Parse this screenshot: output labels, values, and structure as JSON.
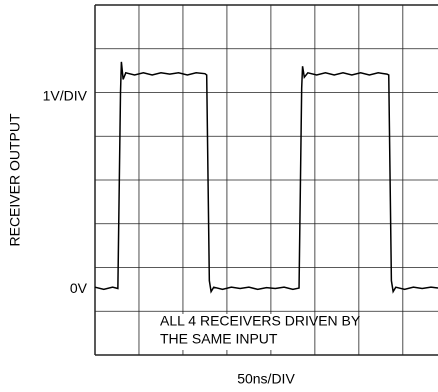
{
  "chart_data": {
    "type": "line",
    "y_label": "RECEIVER OUTPUT",
    "x_label": "50ns/DIV",
    "annotation": [
      "ALL 4 RECEIVERS DRIVEN BY",
      "THE SAME INPUT"
    ],
    "xlim": [
      0,
      390
    ],
    "ylim": [
      -1.5,
      6.5
    ],
    "xgrid": [
      0,
      50,
      100,
      150,
      200,
      250,
      300,
      350
    ],
    "ygrid": [
      -1.5,
      -0.5,
      0.5,
      1.5,
      2.5,
      3.5,
      4.5,
      5.5,
      6.5
    ],
    "yticks": [
      {
        "value": 0,
        "label": "0V"
      },
      {
        "value": 4.4,
        "label": "1V/DIV"
      }
    ],
    "grid": true,
    "series": [
      {
        "color": "#000000",
        "x": [
          0,
          10,
          20,
          26,
          29,
          30,
          32,
          35,
          45,
          55,
          65,
          75,
          85,
          95,
          105,
          115,
          125,
          127,
          130,
          132,
          135,
          145,
          155,
          165,
          175,
          185,
          195,
          205,
          215,
          225,
          232,
          235,
          236,
          238,
          242,
          252,
          262,
          272,
          282,
          292,
          302,
          312,
          322,
          332,
          334,
          337,
          339,
          342,
          352,
          362,
          372,
          382,
          390
        ],
        "values": [
          0.05,
          0.0,
          0.05,
          0.02,
          4.5,
          5.2,
          4.8,
          4.95,
          4.9,
          4.95,
          4.9,
          4.95,
          4.92,
          4.95,
          4.9,
          4.95,
          4.93,
          4.9,
          0.2,
          -0.05,
          0.05,
          0.0,
          0.05,
          0.02,
          0.05,
          0.0,
          0.04,
          0.02,
          0.05,
          0.0,
          0.03,
          4.6,
          5.1,
          4.85,
          4.95,
          4.9,
          4.95,
          4.9,
          4.95,
          4.9,
          4.95,
          4.9,
          4.95,
          4.92,
          4.9,
          0.2,
          -0.05,
          0.05,
          0.0,
          0.05,
          0.02,
          0.05,
          0.03
        ]
      }
    ]
  }
}
